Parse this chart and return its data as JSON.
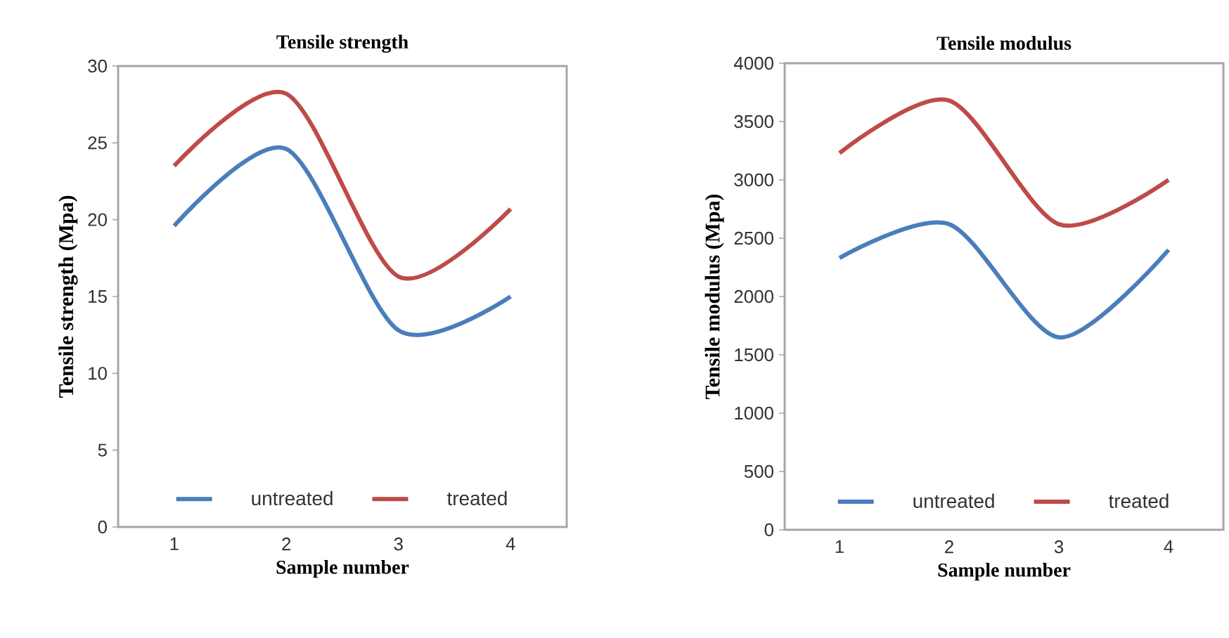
{
  "chart_data": [
    {
      "type": "line",
      "title": "Tensile strength",
      "xlabel": "Sample number",
      "ylabel": "Tensile strength (Mpa)",
      "categories": [
        "1",
        "2",
        "3",
        "4"
      ],
      "series": [
        {
          "name": "untreated",
          "color": "#4a7ebb",
          "values": [
            19.6,
            24.6,
            12.8,
            15.0
          ]
        },
        {
          "name": "treated",
          "color": "#be4b48",
          "values": [
            23.5,
            28.2,
            16.3,
            20.7
          ]
        }
      ],
      "ylim": [
        0,
        30
      ],
      "yticks": [
        0,
        5,
        10,
        15,
        20,
        25,
        30
      ],
      "legend": "bottom",
      "grid": false,
      "marker": "none",
      "line_style": "solid"
    },
    {
      "type": "line",
      "title": "Tensile modulus",
      "xlabel": "Sample number",
      "ylabel": "Tensile modulus (Mpa)",
      "categories": [
        "1",
        "2",
        "3",
        "4"
      ],
      "series": [
        {
          "name": "untreated",
          "color": "#4a7ebb",
          "values": [
            2330,
            2620,
            1650,
            2400
          ]
        },
        {
          "name": "treated",
          "color": "#be4b48",
          "values": [
            3230,
            3680,
            2620,
            3000
          ]
        }
      ],
      "ylim": [
        0,
        4000
      ],
      "yticks": [
        0,
        500,
        1000,
        1500,
        2000,
        2500,
        3000,
        3500,
        4000
      ],
      "legend": "bottom",
      "grid": false,
      "marker": "none",
      "line_style": "solid"
    }
  ]
}
